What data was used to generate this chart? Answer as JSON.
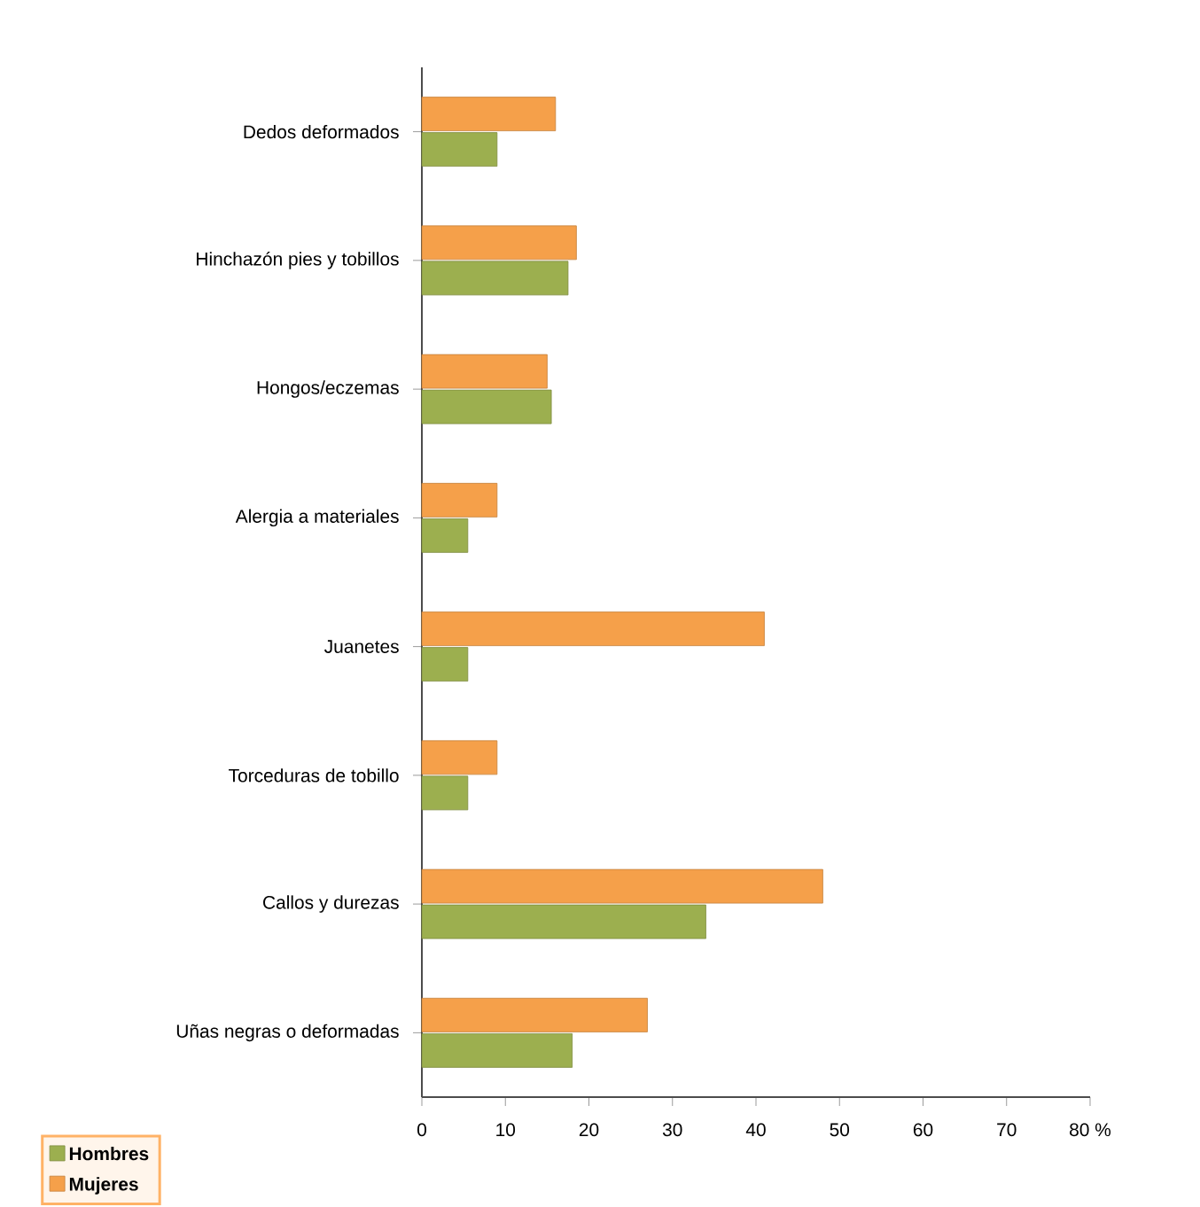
{
  "chart_data": {
    "type": "bar",
    "orientation": "horizontal",
    "categories": [
      "Dedos deformados",
      "Hinchazón pies y tobillos",
      "Hongos/eczemas",
      "Alergia a materiales",
      "Juanetes",
      "Torceduras de tobillo",
      "Callos y durezas",
      "Uñas negras o deformadas"
    ],
    "series": [
      {
        "name": "Hombres",
        "color": "#9caf4f",
        "values": [
          9,
          17.5,
          15.5,
          5.5,
          5.5,
          5.5,
          34,
          18
        ]
      },
      {
        "name": "Mujeres",
        "color": "#f5a04a",
        "values": [
          16,
          18.5,
          15,
          9,
          41,
          9,
          48,
          27
        ]
      }
    ],
    "xlim": [
      0,
      80
    ],
    "xticks": [
      0,
      10,
      20,
      30,
      40,
      50,
      60,
      70,
      {
        "value": 80,
        "label": "80 %"
      }
    ],
    "grid": false,
    "legend": "bottom left"
  }
}
